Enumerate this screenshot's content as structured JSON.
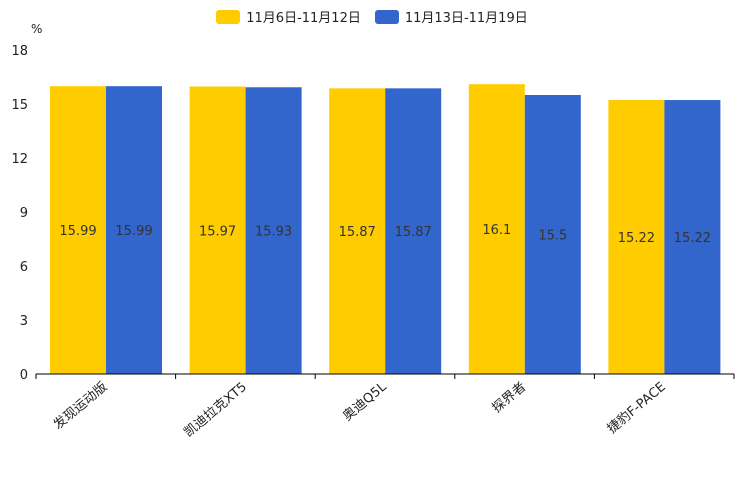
{
  "chart_data": {
    "type": "bar",
    "unit_label": "%",
    "categories": [
      "发现运动版",
      "凯迪拉克XT5",
      "奥迪Q5L",
      "探界者",
      "捷豹F-PACE"
    ],
    "series": [
      {
        "name": "11月6日-11月12日",
        "color": "#ffcc00",
        "values": [
          15.99,
          15.97,
          15.87,
          16.1,
          15.22
        ]
      },
      {
        "name": "11月13日-11月19日",
        "color": "#3366cc",
        "values": [
          15.99,
          15.93,
          15.87,
          15.5,
          15.22
        ]
      }
    ],
    "yticks": [
      0,
      3,
      6,
      9,
      12,
      15,
      18
    ],
    "ylim": [
      0,
      18
    ],
    "grid": false,
    "legend": "top-center"
  }
}
